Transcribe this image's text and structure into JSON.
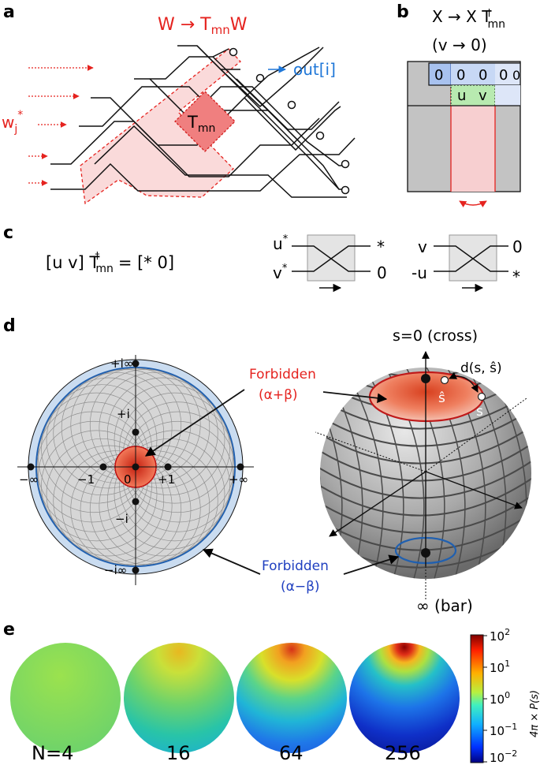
{
  "panels": {
    "a": "a",
    "b": "b",
    "c": "c",
    "d": "d",
    "e": "e"
  },
  "panel_a": {
    "title_main": "W → T",
    "title_sub": "mn",
    "title_tail": "W",
    "out_label": "out[i]",
    "input_main": "w",
    "input_sub": "j",
    "input_sup": "*",
    "block_main": "T",
    "block_sub": "mn",
    "colors": {
      "red": "#e5231f",
      "blue": "#1f77d8",
      "pink": "#f9d2d2",
      "block": "#ee7070"
    }
  },
  "panel_b": {
    "title_main": "X → X T",
    "title_sup": "†",
    "title_sub": "mn",
    "subtitle": "(v → 0)",
    "row1": [
      "0",
      "0",
      "0",
      "0",
      "0"
    ],
    "row2": [
      "u",
      "v"
    ]
  },
  "panel_c": {
    "eq_left": "[u    v] T",
    "eq_sup": "†",
    "eq_sub": "mn",
    "eq_right": "= [*    0]",
    "gate1": {
      "in_top": "u",
      "in_top_sup": "*",
      "in_bot": "v",
      "in_bot_sup": "*",
      "out_top": "*",
      "out_bot": "0"
    },
    "gate2": {
      "in_top": "v",
      "in_bot": "-u",
      "out_top": "0",
      "out_bot": "*"
    }
  },
  "panel_d": {
    "axis_labels": {
      "plus_i_inf": "+i∞",
      "plus_i": "+i",
      "zero": "0",
      "minus_i": "−i",
      "minus_i_inf": "−i∞",
      "minus_inf": "−∞",
      "minus_one": "−1",
      "plus_one": "+1",
      "plus_inf": "+∞"
    },
    "forbidden_top": "Forbidden",
    "forbidden_top_sub": "(α+β)",
    "forbidden_bot": "Forbidden",
    "forbidden_bot_sub": "(α−β)",
    "sphere_top": "s=0 (cross)",
    "sphere_bottom": "∞ (bar)",
    "distance": "d(s, ŝ)",
    "s_hat": "ŝ",
    "s": "s"
  },
  "panel_e": {
    "labels": [
      "N=4",
      "16",
      "64",
      "256"
    ],
    "colorbar_ticks": [
      "10",
      "10",
      "10",
      "10",
      "10"
    ],
    "colorbar_exps": [
      "2",
      "1",
      "0",
      "−1",
      "−2"
    ],
    "colorbar_label": "4π × P(s)"
  }
}
